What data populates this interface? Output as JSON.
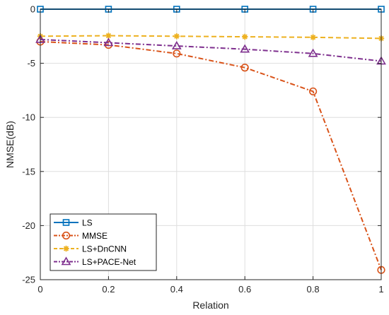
{
  "chart_data": {
    "type": "line",
    "title": "",
    "xlabel": "Relation",
    "ylabel": "NMSE(dB)",
    "xlim": [
      0,
      1
    ],
    "ylim": [
      -25,
      0
    ],
    "xticks": [
      0,
      0.2,
      0.4,
      0.6,
      0.8,
      1
    ],
    "yticks": [
      0,
      -5,
      -10,
      -15,
      -20,
      -25
    ],
    "xtick_labels": [
      "0",
      "0.2",
      "0.4",
      "0.6",
      "0.8",
      "1"
    ],
    "ytick_labels": [
      "0",
      "-5",
      "-10",
      "-15",
      "-20",
      "-25"
    ],
    "grid": true,
    "legend_position": "bottom-left",
    "x": [
      0,
      0.2,
      0.4,
      0.6,
      0.8,
      1
    ],
    "series": [
      {
        "name": "LS",
        "values": [
          0,
          0,
          0,
          0,
          0,
          0
        ],
        "color": "#0072BD",
        "marker": "square",
        "dash": "solid"
      },
      {
        "name": "MMSE",
        "values": [
          -3.0,
          -3.3,
          -4.1,
          -5.4,
          -7.6,
          -24.1
        ],
        "color": "#D95319",
        "marker": "circle",
        "dash": "dashdot"
      },
      {
        "name": "LS+DnCNN",
        "values": [
          -2.5,
          -2.45,
          -2.5,
          -2.55,
          -2.6,
          -2.7
        ],
        "color": "#EDB120",
        "marker": "asterisk",
        "dash": "dashed"
      },
      {
        "name": "LS+PACE-Net",
        "values": [
          -2.8,
          -3.1,
          -3.4,
          -3.7,
          -4.1,
          -4.8
        ],
        "color": "#7E2F8E",
        "marker": "triangle",
        "dash": "dashdot"
      }
    ]
  }
}
